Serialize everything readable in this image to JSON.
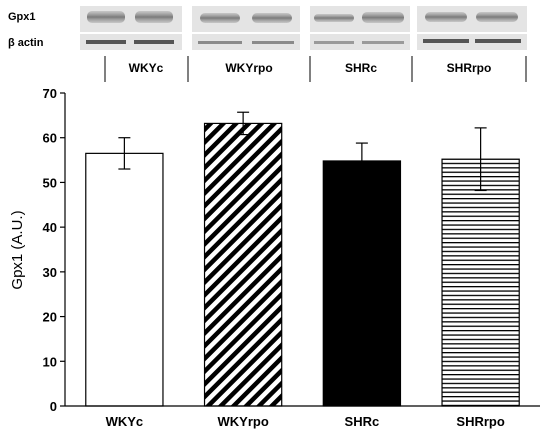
{
  "blot": {
    "row_labels": [
      "Gpx1",
      "β actin"
    ],
    "lane_labels": [
      "WKYc",
      "WKYrpo",
      "SHRc",
      "SHRrpo"
    ]
  },
  "chart_data": {
    "type": "bar",
    "categories": [
      "WKYc",
      "WKYrpo",
      "SHRc",
      "SHRrpo"
    ],
    "values": [
      56.5,
      63.2,
      54.8,
      55.2
    ],
    "errors": [
      3.5,
      2.5,
      4.0,
      7.0
    ],
    "patterns": [
      "white",
      "diagonal-hatch",
      "black",
      "horizontal-hatch"
    ],
    "title": "",
    "xlabel": "",
    "ylabel": "Gpx1 (A.U.)",
    "ylim": [
      0,
      70
    ],
    "yticks": [
      0,
      10,
      20,
      30,
      40,
      50,
      60,
      70
    ],
    "grid": false
  }
}
